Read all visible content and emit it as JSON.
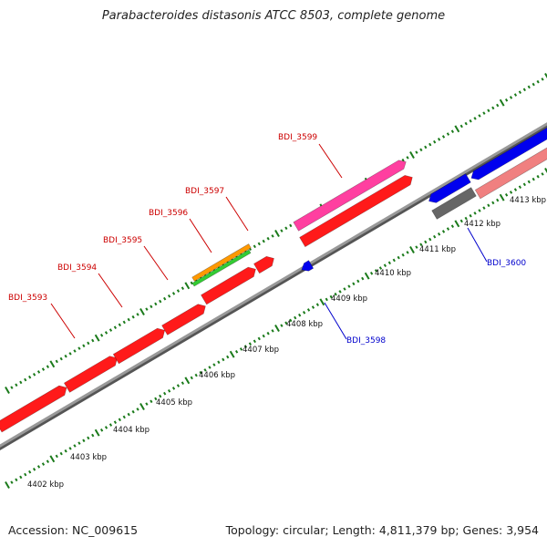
{
  "title": "Parabacteroides distasonis ATCC 8503, complete genome",
  "footer": {
    "accession": "Accession: NC_009615",
    "summary": "Topology: circular; Length: 4,811,379 bp; Genes: 3,954"
  },
  "colors": {
    "backbone": "#888888",
    "tick_major": "#1a7a1a",
    "tick_minor": "#1a7a1a",
    "label_forward": "#cc0000",
    "label_reverse": "#0000cc",
    "cds": "#ff1a1a",
    "cds_pink": "#ff3fa0",
    "cds_salmon": "#f08080",
    "cds_blue": "#0000ee",
    "cds_gray": "#666666",
    "rrna_orange": "#ff9900",
    "rrna_green": "#33cc33"
  },
  "axis": {
    "unit": "kbp",
    "ticks": [
      4402,
      4403,
      4404,
      4405,
      4406,
      4407,
      4408,
      4409,
      4410,
      4411,
      4412,
      4413
    ],
    "tick_labels": [
      "4402 kbp",
      "4403 kbp",
      "4404 kbp",
      "4405 kbp",
      "4406 kbp",
      "4407 kbp",
      "4408 kbp",
      "4409 kbp",
      "4410 kbp",
      "4411 kbp",
      "4412 kbp",
      "4413 kbp"
    ]
  },
  "gene_labels": [
    {
      "text": "BDI_3593",
      "strand": "forward"
    },
    {
      "text": "BDI_3594",
      "strand": "forward"
    },
    {
      "text": "BDI_3595",
      "strand": "forward"
    },
    {
      "text": "BDI_3596",
      "strand": "forward"
    },
    {
      "text": "BDI_3597",
      "strand": "forward"
    },
    {
      "text": "BDI_3599",
      "strand": "forward"
    },
    {
      "text": "BDI_3598",
      "strand": "reverse"
    },
    {
      "text": "BDI_3600",
      "strand": "reverse"
    }
  ]
}
